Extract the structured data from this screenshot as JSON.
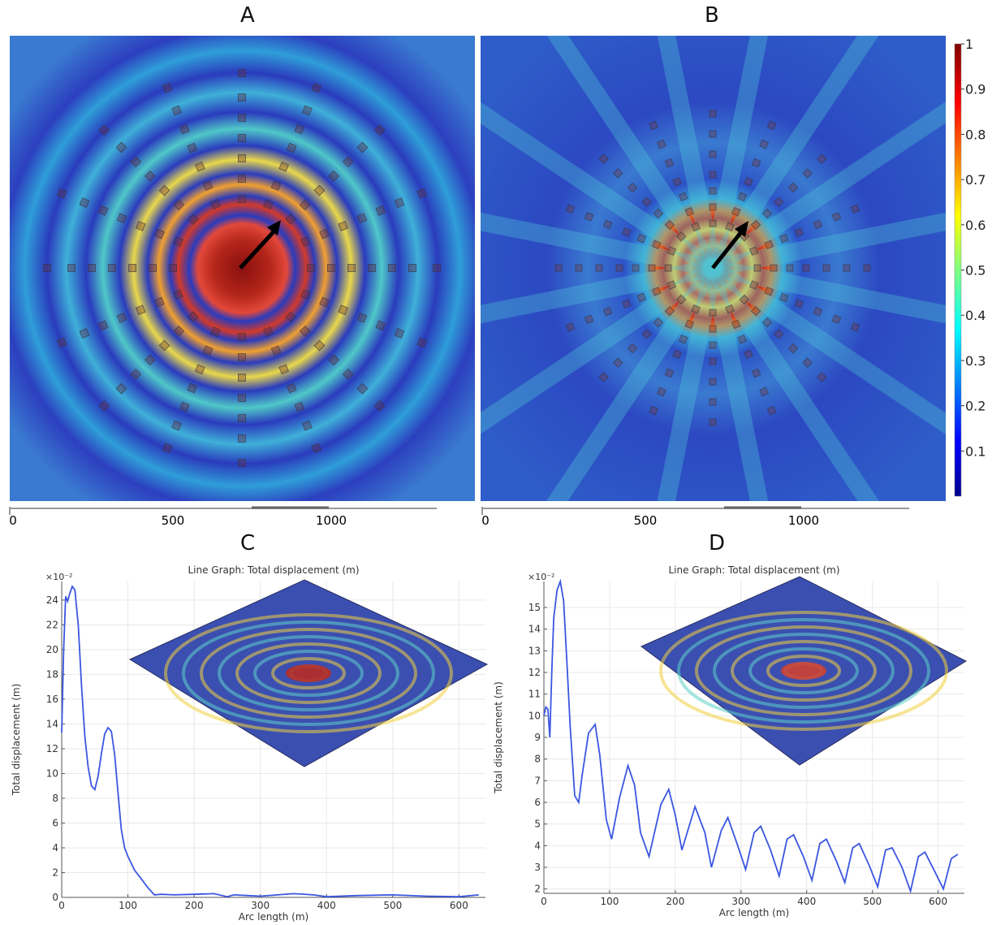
{
  "panels": {
    "a": {
      "letter": "A"
    },
    "b": {
      "letter": "B"
    },
    "c": {
      "letter": "C"
    },
    "d": {
      "letter": "D"
    }
  },
  "scalebar": {
    "ticks": [
      "0",
      "500",
      "1000"
    ]
  },
  "colorbar": {
    "ticks": [
      "1",
      "0.9",
      "0.8",
      "0.7",
      "0.6",
      "0.5",
      "0.4",
      "0.3",
      "0.2",
      "0.1"
    ],
    "range": [
      0,
      1
    ],
    "colormap": "jet"
  },
  "colors": {
    "line": "#3a56e0",
    "arrow": "#000000",
    "ring_hot": "#a51c12",
    "background_low": "#2c3fbf"
  },
  "chart_data": [
    {
      "type": "line",
      "title": "Line Graph: Total displacement (m)",
      "xlabel": "Arc length (m)",
      "ylabel": "Total displacement (m)",
      "yscale_label": "×10⁻²",
      "xlim": [
        0,
        640
      ],
      "ylim": [
        0,
        25.5
      ],
      "xticks": [
        0,
        100,
        200,
        300,
        400,
        500,
        600
      ],
      "yticks": [
        0,
        2,
        4,
        6,
        8,
        10,
        12,
        14,
        16,
        18,
        20,
        22,
        24
      ],
      "grid": true,
      "series": [
        {
          "x": [
            0,
            3,
            6,
            9,
            12,
            16,
            20,
            25,
            30,
            35,
            40,
            45,
            50,
            55,
            60,
            65,
            70,
            75,
            80,
            85,
            90,
            95,
            100,
            110,
            120,
            130,
            140,
            150,
            170,
            200,
            230,
            250,
            260,
            280,
            300,
            350,
            380,
            400,
            450,
            500,
            550,
            600,
            630
          ],
          "y": [
            13.3,
            20,
            24.3,
            23.9,
            24.5,
            25.1,
            24.8,
            22,
            17,
            13,
            10.5,
            9,
            8.7,
            9.8,
            11.6,
            13.2,
            13.7,
            13.4,
            11.5,
            8.5,
            5.5,
            4,
            3.3,
            2.2,
            1.5,
            0.8,
            0.2,
            0.25,
            0.2,
            0.25,
            0.3,
            0.05,
            0.2,
            0.15,
            0.1,
            0.3,
            0.2,
            0.05,
            0.15,
            0.2,
            0.1,
            0.05,
            0.2
          ]
        }
      ]
    },
    {
      "type": "line",
      "title": "Line Graph: Total displacement (m)",
      "xlabel": "Arc length (m)",
      "ylabel": "Total displacement (m)",
      "yscale_label": "×10⁻²",
      "xlim": [
        0,
        640
      ],
      "ylim": [
        1.8,
        16.2
      ],
      "xticks": [
        0,
        100,
        200,
        300,
        400,
        500,
        600
      ],
      "yticks": [
        2,
        3,
        4,
        5,
        6,
        7,
        8,
        9,
        10,
        11,
        12,
        13,
        14,
        15
      ],
      "grid": true,
      "series": [
        {
          "x": [
            0,
            3,
            6,
            9,
            12,
            15,
            20,
            25,
            30,
            35,
            40,
            47,
            53,
            58,
            68,
            78,
            85,
            95,
            103,
            115,
            128,
            138,
            147,
            160,
            178,
            190,
            200,
            210,
            230,
            245,
            255,
            270,
            280,
            295,
            307,
            320,
            330,
            345,
            358,
            370,
            380,
            395,
            408,
            420,
            430,
            445,
            458,
            470,
            480,
            495,
            508,
            520,
            530,
            545,
            558,
            570,
            580,
            595,
            608,
            620,
            630
          ],
          "y": [
            10,
            10.4,
            10.3,
            9,
            12,
            14.5,
            15.8,
            16.2,
            15.3,
            12.5,
            9.5,
            6.3,
            6.0,
            7.2,
            9.2,
            9.6,
            8.2,
            5.2,
            4.3,
            6.2,
            7.7,
            6.8,
            4.6,
            3.5,
            5.9,
            6.6,
            5.4,
            3.8,
            5.8,
            4.6,
            3.0,
            4.7,
            5.3,
            4.0,
            2.9,
            4.6,
            4.9,
            3.8,
            2.6,
            4.3,
            4.5,
            3.5,
            2.4,
            4.1,
            4.3,
            3.3,
            2.3,
            3.9,
            4.1,
            3.1,
            2.1,
            3.8,
            3.9,
            3.0,
            1.9,
            3.5,
            3.7,
            2.8,
            2.0,
            3.4,
            3.6
          ]
        }
      ]
    }
  ]
}
